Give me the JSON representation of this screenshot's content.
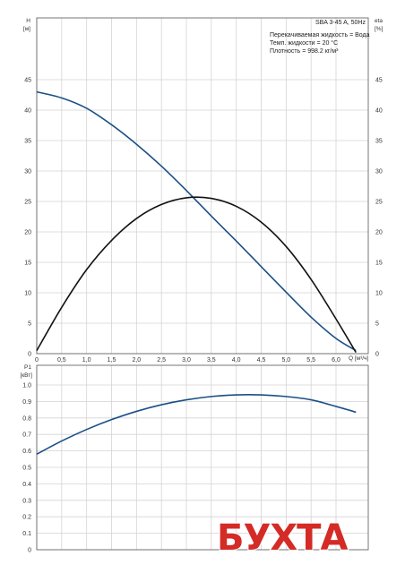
{
  "chart_data": [
    {
      "type": "line",
      "ylabel_top": "H",
      "ylabel_unit": "[м]",
      "ylabel_right_top": "eta",
      "ylabel_right_unit": "[%]",
      "xlabel": "Q [м³/ч]",
      "x_ticks": [
        "0",
        "0,5",
        "1,0",
        "1,5",
        "2,0",
        "2,5",
        "3,0",
        "3,5",
        "4,0",
        "4,5",
        "5,0",
        "5,5",
        "6,0"
      ],
      "y_ticks": [
        "0",
        "5",
        "10",
        "15",
        "20",
        "25",
        "30",
        "35",
        "40",
        "45"
      ],
      "ylim": [
        0,
        50
      ],
      "xlim": [
        0,
        6.6
      ],
      "grid": true,
      "info_box": {
        "title": "SBA 3-45 A, 50Hz",
        "lines": [
          "Перекачиваемая жидкость = Вода",
          "Темп. жидкости = 20 °C",
          "Плотность = 998.2 кг/м³"
        ]
      },
      "series": [
        {
          "color": "#1a4f86",
          "x": [
            0,
            0.5,
            1.0,
            1.5,
            2.0,
            2.5,
            3.0,
            3.5,
            4.0,
            4.5,
            5.0,
            5.5,
            6.0,
            6.4
          ],
          "values": [
            43,
            42,
            40.3,
            37.6,
            34.4,
            30.8,
            26.8,
            22.6,
            18.5,
            14.3,
            10.1,
            6.0,
            2.5,
            0.5
          ]
        },
        {
          "color": "#111111",
          "x": [
            0,
            0.5,
            1.0,
            1.5,
            2.0,
            2.5,
            3.0,
            3.5,
            4.0,
            4.5,
            5.0,
            5.5,
            6.0,
            6.4
          ],
          "values": [
            0.5,
            7.6,
            13.8,
            18.6,
            22.2,
            24.5,
            25.6,
            25.5,
            24.2,
            21.6,
            17.6,
            12.2,
            5.7,
            0.2
          ]
        }
      ]
    },
    {
      "type": "line",
      "ylabel_top": "P1",
      "ylabel_unit": "[кВт]",
      "y_ticks": [
        "0",
        "0.1",
        "0.2",
        "0.3",
        "0.4",
        "0.5",
        "0.6",
        "0.7",
        "0.8",
        "0.9",
        "1.0"
      ],
      "ylim": [
        0,
        1.1
      ],
      "xlim": [
        0,
        6.6
      ],
      "grid": true,
      "series": [
        {
          "color": "#1a4f86",
          "x": [
            0,
            0.5,
            1.0,
            1.5,
            2.0,
            2.5,
            3.0,
            3.5,
            4.0,
            4.5,
            5.0,
            5.5,
            6.0,
            6.4
          ],
          "values": [
            0.58,
            0.66,
            0.73,
            0.79,
            0.84,
            0.88,
            0.91,
            0.93,
            0.94,
            0.94,
            0.93,
            0.91,
            0.87,
            0.835
          ]
        }
      ]
    }
  ],
  "watermark": {
    "text": "БУХТА",
    "color": "#d42b26"
  }
}
